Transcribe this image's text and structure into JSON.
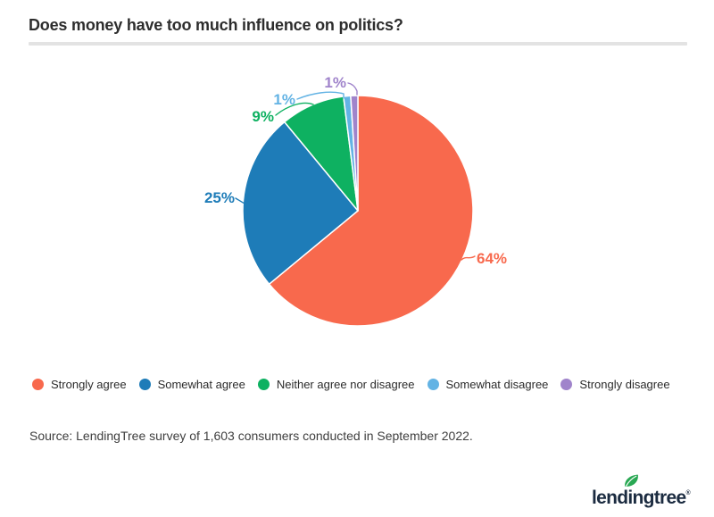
{
  "page": {
    "title": "Does money have too much influence on politics?",
    "source": "Source: LendingTree survey of 1,603 consumers conducted in September 2022.",
    "brand": {
      "wordmark": "lendingtree",
      "registered": "®"
    }
  },
  "colors": {
    "title_text": "#2d2d2d",
    "divider": "#e3e3e3",
    "legend_text": "#2b2b2b",
    "source_text": "#3e3e3e",
    "brand_navy": "#1b2b40",
    "brand_leaf_green": "#29a853"
  },
  "chart_data": {
    "type": "pie",
    "title": "Does money have too much influence on politics?",
    "unit": "%",
    "start_angle_deg": 0,
    "direction": "clockwise",
    "legend_position": "bottom",
    "slices": [
      {
        "label": "Strongly agree",
        "value": 64,
        "data_label": "64%",
        "color": "#f8694d"
      },
      {
        "label": "Somewhat agree",
        "value": 25,
        "data_label": "25%",
        "color": "#1e7cb8"
      },
      {
        "label": "Neither agree nor disagree",
        "value": 9,
        "data_label": "9%",
        "color": "#0eb161"
      },
      {
        "label": "Somewhat disagree",
        "value": 1,
        "data_label": "1%",
        "color": "#63b3e4"
      },
      {
        "label": "Strongly disagree",
        "value": 1,
        "data_label": "1%",
        "color": "#a084cb"
      }
    ]
  }
}
